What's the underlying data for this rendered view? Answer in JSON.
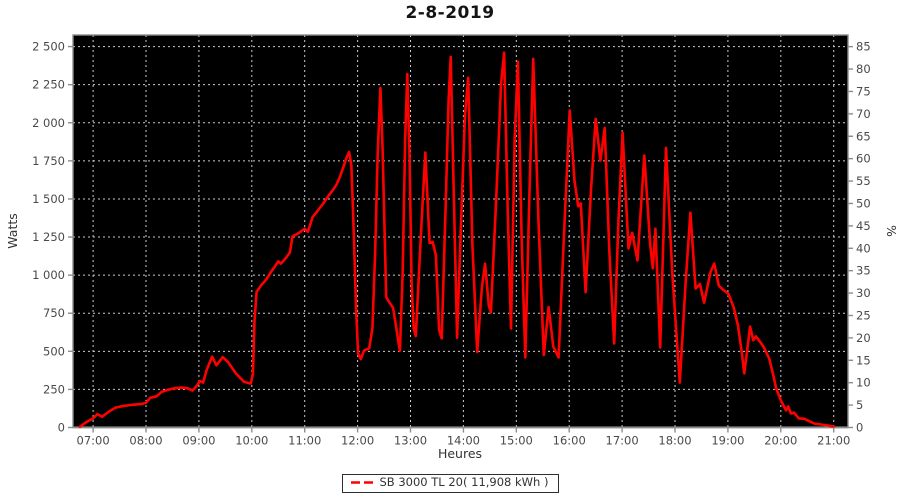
{
  "colors": {
    "series_line": "#ff0000",
    "plot_background": "#000000",
    "gridline": "#cccccc",
    "axis_line": "#8c8c8c",
    "zero_baseline": "#b0b0b0",
    "tick_label": "#4a4a4a",
    "title_text": "#141414"
  },
  "chart_data": {
    "type": "line",
    "title": "2-8-2019",
    "xlabel": "Heures",
    "ylabel": "Watts",
    "y2label": "%",
    "grid": true,
    "xlim": [
      6.62,
      21.27
    ],
    "ylim": [
      0,
      2576
    ],
    "y2lim": [
      0,
      87.6
    ],
    "x_ticks": {
      "values": [
        7,
        8,
        9,
        10,
        11,
        12,
        13,
        14,
        15,
        16,
        17,
        18,
        19,
        20,
        21
      ],
      "labels": [
        "07:00",
        "08:00",
        "09:00",
        "10:00",
        "11:00",
        "12:00",
        "13:00",
        "14:00",
        "15:00",
        "16:00",
        "17:00",
        "18:00",
        "19:00",
        "20:00",
        "21:00"
      ]
    },
    "y_ticks": {
      "values": [
        0,
        250,
        500,
        750,
        1000,
        1250,
        1500,
        1750,
        2000,
        2250,
        2500
      ],
      "labels": [
        "0",
        "250",
        "500",
        "750",
        "1 000",
        "1 250",
        "1 500",
        "1 750",
        "2 000",
        "2 250",
        "2 500"
      ]
    },
    "y2_ticks": {
      "values": [
        0,
        5,
        10,
        15,
        20,
        25,
        30,
        35,
        40,
        45,
        50,
        55,
        60,
        65,
        70,
        75,
        80,
        85
      ],
      "labels": [
        "0",
        "5",
        "10",
        "15",
        "20",
        "25",
        "30",
        "35",
        "40",
        "45",
        "50",
        "55",
        "60",
        "65",
        "70",
        "75",
        "80",
        "85"
      ]
    },
    "legend": {
      "position": "bottom",
      "label": "SB 3000 TL 20( 11,908 kWh )"
    },
    "series": [
      {
        "name": "SB 3000 TL 20",
        "color": "#ff0000",
        "points": [
          [
            6.75,
            5
          ],
          [
            6.87,
            35
          ],
          [
            7.0,
            60
          ],
          [
            7.08,
            88
          ],
          [
            7.17,
            70
          ],
          [
            7.3,
            105
          ],
          [
            7.42,
            130
          ],
          [
            7.55,
            140
          ],
          [
            7.72,
            148
          ],
          [
            7.92,
            155
          ],
          [
            8.0,
            162
          ],
          [
            8.08,
            195
          ],
          [
            8.2,
            205
          ],
          [
            8.3,
            235
          ],
          [
            8.42,
            248
          ],
          [
            8.55,
            258
          ],
          [
            8.67,
            262
          ],
          [
            8.78,
            258
          ],
          [
            8.88,
            243
          ],
          [
            8.95,
            270
          ],
          [
            9.02,
            305
          ],
          [
            9.08,
            295
          ],
          [
            9.15,
            380
          ],
          [
            9.25,
            465
          ],
          [
            9.33,
            408
          ],
          [
            9.45,
            462
          ],
          [
            9.55,
            430
          ],
          [
            9.7,
            355
          ],
          [
            9.85,
            300
          ],
          [
            9.98,
            288
          ],
          [
            10.02,
            350
          ],
          [
            10.05,
            700
          ],
          [
            10.09,
            890
          ],
          [
            10.17,
            930
          ],
          [
            10.28,
            975
          ],
          [
            10.38,
            1030
          ],
          [
            10.5,
            1090
          ],
          [
            10.55,
            1075
          ],
          [
            10.65,
            1115
          ],
          [
            10.72,
            1150
          ],
          [
            10.77,
            1255
          ],
          [
            10.87,
            1272
          ],
          [
            11.0,
            1305
          ],
          [
            11.06,
            1285
          ],
          [
            11.15,
            1380
          ],
          [
            11.25,
            1425
          ],
          [
            11.35,
            1470
          ],
          [
            11.45,
            1520
          ],
          [
            11.53,
            1558
          ],
          [
            11.6,
            1592
          ],
          [
            11.67,
            1650
          ],
          [
            11.73,
            1708
          ],
          [
            11.79,
            1772
          ],
          [
            11.84,
            1808
          ],
          [
            11.88,
            1725
          ],
          [
            11.91,
            1465
          ],
          [
            11.94,
            1140
          ],
          [
            11.97,
            790
          ],
          [
            12.01,
            485
          ],
          [
            12.06,
            448
          ],
          [
            12.12,
            505
          ],
          [
            12.22,
            520
          ],
          [
            12.28,
            650
          ],
          [
            12.33,
            1140
          ],
          [
            12.38,
            1800
          ],
          [
            12.43,
            2228
          ],
          [
            12.47,
            1850
          ],
          [
            12.51,
            1290
          ],
          [
            12.54,
            855
          ],
          [
            12.6,
            822
          ],
          [
            12.67,
            785
          ],
          [
            12.72,
            680
          ],
          [
            12.77,
            565
          ],
          [
            12.8,
            505
          ],
          [
            12.85,
            1000
          ],
          [
            12.9,
            1900
          ],
          [
            12.94,
            2320
          ],
          [
            12.98,
            1800
          ],
          [
            13.02,
            950
          ],
          [
            13.06,
            650
          ],
          [
            13.1,
            600
          ],
          [
            13.18,
            1150
          ],
          [
            13.28,
            1805
          ],
          [
            13.36,
            1210
          ],
          [
            13.42,
            1218
          ],
          [
            13.48,
            1128
          ],
          [
            13.54,
            640
          ],
          [
            13.59,
            585
          ],
          [
            13.66,
            1400
          ],
          [
            13.72,
            2150
          ],
          [
            13.76,
            2432
          ],
          [
            13.82,
            1500
          ],
          [
            13.88,
            590
          ],
          [
            13.95,
            1300
          ],
          [
            14.03,
            2050
          ],
          [
            14.09,
            2295
          ],
          [
            14.17,
            1200
          ],
          [
            14.26,
            495
          ],
          [
            14.35,
            920
          ],
          [
            14.41,
            1075
          ],
          [
            14.48,
            800
          ],
          [
            14.52,
            755
          ],
          [
            14.62,
            1500
          ],
          [
            14.71,
            2250
          ],
          [
            14.77,
            2460
          ],
          [
            14.84,
            1400
          ],
          [
            14.9,
            650
          ],
          [
            14.97,
            1900
          ],
          [
            15.03,
            2400
          ],
          [
            15.1,
            1250
          ],
          [
            15.17,
            460
          ],
          [
            15.25,
            1550
          ],
          [
            15.32,
            2420
          ],
          [
            15.42,
            1350
          ],
          [
            15.52,
            475
          ],
          [
            15.61,
            790
          ],
          [
            15.7,
            530
          ],
          [
            15.8,
            460
          ],
          [
            15.9,
            1250
          ],
          [
            16.01,
            2080
          ],
          [
            16.1,
            1620
          ],
          [
            16.17,
            1452
          ],
          [
            16.22,
            1470
          ],
          [
            16.31,
            888
          ],
          [
            16.41,
            1550
          ],
          [
            16.5,
            2026
          ],
          [
            16.59,
            1752
          ],
          [
            16.67,
            1965
          ],
          [
            16.76,
            1150
          ],
          [
            16.85,
            552
          ],
          [
            16.93,
            1350
          ],
          [
            17.01,
            1935
          ],
          [
            17.12,
            1175
          ],
          [
            17.19,
            1278
          ],
          [
            17.29,
            1096
          ],
          [
            17.42,
            1785
          ],
          [
            17.53,
            1200
          ],
          [
            17.58,
            1045
          ],
          [
            17.63,
            1305
          ],
          [
            17.72,
            525
          ],
          [
            17.83,
            1836
          ],
          [
            17.95,
            1000
          ],
          [
            18.09,
            295
          ],
          [
            18.2,
            950
          ],
          [
            18.29,
            1410
          ],
          [
            18.39,
            912
          ],
          [
            18.47,
            942
          ],
          [
            18.55,
            820
          ],
          [
            18.67,
            1020
          ],
          [
            18.74,
            1076
          ],
          [
            18.83,
            930
          ],
          [
            18.93,
            898
          ],
          [
            19.01,
            878
          ],
          [
            19.11,
            788
          ],
          [
            19.19,
            668
          ],
          [
            19.25,
            525
          ],
          [
            19.31,
            355
          ],
          [
            19.42,
            662
          ],
          [
            19.48,
            572
          ],
          [
            19.53,
            598
          ],
          [
            19.63,
            552
          ],
          [
            19.68,
            525
          ],
          [
            19.78,
            452
          ],
          [
            19.85,
            355
          ],
          [
            19.91,
            258
          ],
          [
            20.0,
            178
          ],
          [
            20.1,
            112
          ],
          [
            20.14,
            138
          ],
          [
            20.19,
            92
          ],
          [
            20.25,
            98
          ],
          [
            20.34,
            60
          ],
          [
            20.44,
            58
          ],
          [
            20.51,
            46
          ],
          [
            20.63,
            26
          ],
          [
            20.76,
            20
          ],
          [
            20.89,
            13
          ],
          [
            21.0,
            5
          ]
        ]
      }
    ]
  }
}
